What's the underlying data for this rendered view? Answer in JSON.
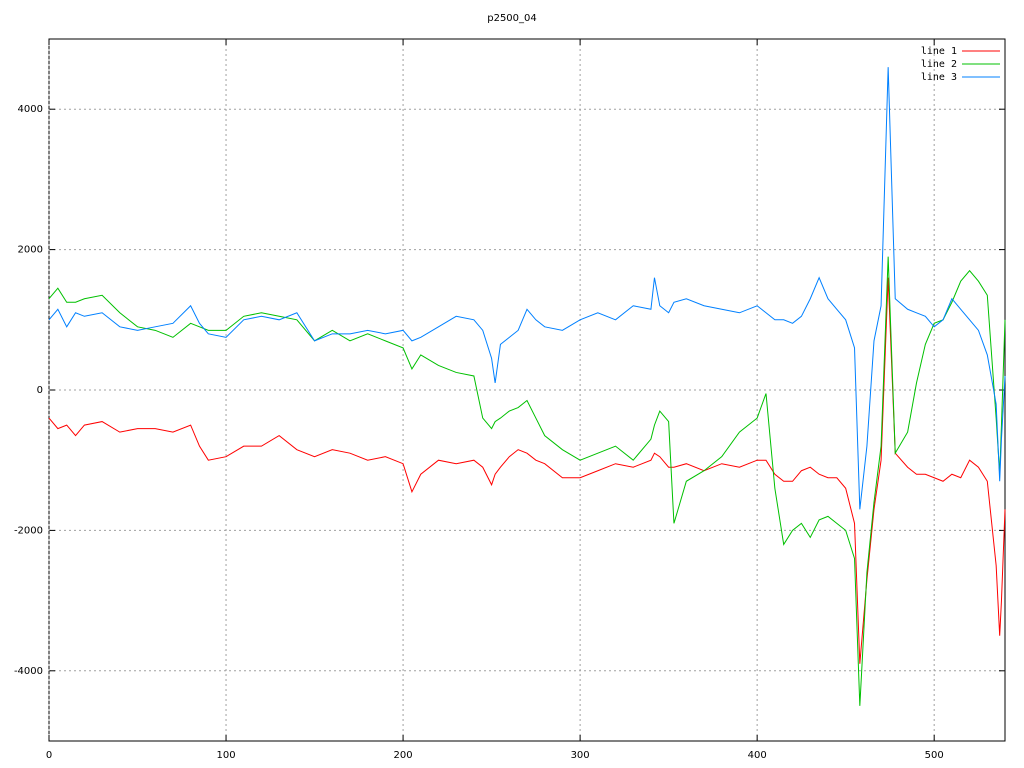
{
  "chart_data": {
    "type": "line",
    "title": "p2500_04",
    "x": [
      0,
      5,
      10,
      15,
      20,
      30,
      40,
      50,
      60,
      70,
      80,
      85,
      90,
      100,
      110,
      120,
      130,
      140,
      150,
      160,
      170,
      180,
      190,
      200,
      205,
      210,
      220,
      230,
      240,
      245,
      250,
      252,
      255,
      260,
      265,
      270,
      275,
      280,
      290,
      300,
      310,
      320,
      330,
      340,
      342,
      345,
      350,
      353,
      360,
      370,
      380,
      390,
      400,
      405,
      410,
      415,
      420,
      425,
      430,
      435,
      440,
      445,
      450,
      455,
      458,
      462,
      466,
      470,
      474,
      478,
      485,
      490,
      495,
      500,
      505,
      510,
      515,
      520,
      525,
      530,
      535,
      537,
      538,
      540
    ],
    "series": [
      {
        "name": "line 1",
        "color": "#ff0000",
        "values": [
          -400,
          -550,
          -500,
          -650,
          -500,
          -450,
          -600,
          -550,
          -550,
          -600,
          -500,
          -800,
          -1000,
          -950,
          -800,
          -800,
          -650,
          -850,
          -950,
          -850,
          -900,
          -1000,
          -950,
          -1050,
          -1450,
          -1200,
          -1000,
          -1050,
          -1000,
          -1100,
          -1350,
          -1200,
          -1100,
          -950,
          -850,
          -900,
          -1000,
          -1050,
          -1250,
          -1250,
          -1150,
          -1050,
          -1100,
          -1000,
          -900,
          -950,
          -1100,
          -1100,
          -1050,
          -1150,
          -1050,
          -1100,
          -1000,
          -1000,
          -1200,
          -1300,
          -1300,
          -1150,
          -1100,
          -1200,
          -1250,
          -1250,
          -1400,
          -1900,
          -3900,
          -2700,
          -1700,
          -1000,
          1600,
          -900,
          -1100,
          -1200,
          -1200,
          -1250,
          -1300,
          -1200,
          -1250,
          -1000,
          -1100,
          -1300,
          -2500,
          -3500,
          -3000,
          -1700
        ]
      },
      {
        "name": "line 2",
        "color": "#00c000",
        "values": [
          1300,
          1450,
          1250,
          1250,
          1300,
          1350,
          1100,
          900,
          850,
          750,
          950,
          900,
          850,
          850,
          1050,
          1100,
          1050,
          1000,
          700,
          850,
          700,
          800,
          700,
          600,
          300,
          500,
          350,
          250,
          200,
          -400,
          -550,
          -450,
          -400,
          -300,
          -250,
          -150,
          -400,
          -650,
          -850,
          -1000,
          -900,
          -800,
          -1000,
          -700,
          -500,
          -300,
          -450,
          -1900,
          -1300,
          -1150,
          -950,
          -600,
          -400,
          -50,
          -1400,
          -2200,
          -2000,
          -1900,
          -2100,
          -1850,
          -1800,
          -1900,
          -2000,
          -2400,
          -4500,
          -2600,
          -1600,
          -800,
          1900,
          -900,
          -600,
          100,
          650,
          950,
          1000,
          1250,
          1550,
          1700,
          1550,
          1350,
          -400,
          -1200,
          -500,
          1000
        ]
      },
      {
        "name": "line 3",
        "color": "#0080ff",
        "values": [
          1000,
          1150,
          900,
          1100,
          1050,
          1100,
          900,
          850,
          900,
          950,
          1200,
          950,
          800,
          750,
          1000,
          1050,
          1000,
          1100,
          700,
          800,
          800,
          850,
          800,
          850,
          700,
          750,
          900,
          1050,
          1000,
          850,
          450,
          100,
          650,
          750,
          850,
          1150,
          1000,
          900,
          850,
          1000,
          1100,
          1000,
          1200,
          1150,
          1600,
          1200,
          1100,
          1250,
          1300,
          1200,
          1150,
          1100,
          1200,
          1100,
          1000,
          1000,
          950,
          1050,
          1300,
          1600,
          1300,
          1150,
          1000,
          600,
          -1700,
          -800,
          700,
          1200,
          4600,
          1300,
          1150,
          1100,
          1050,
          900,
          1000,
          1300,
          1150,
          1000,
          850,
          500,
          -200,
          -1300,
          -700,
          200
        ]
      }
    ],
    "xlim": [
      0,
      540
    ],
    "ylim": [
      -5000,
      5000
    ],
    "xticks": [
      0,
      100,
      200,
      300,
      400,
      500
    ],
    "yticks": [
      -4000,
      -2000,
      0,
      2000,
      4000
    ],
    "grid": true,
    "legend": "top-right"
  }
}
